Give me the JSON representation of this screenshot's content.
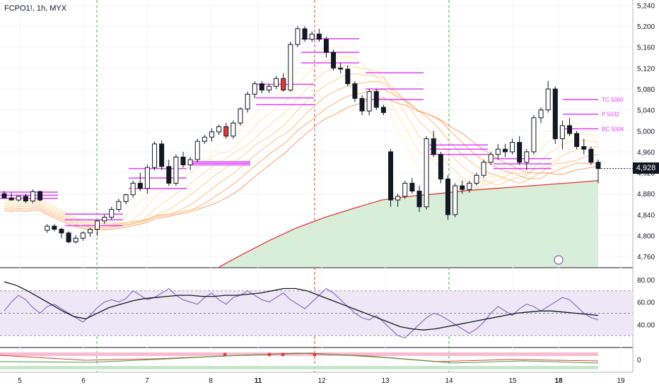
{
  "header": {
    "symbol": "FCPO1!, 1h, MYX"
  },
  "price_axis": {
    "ticks": [
      "5,240",
      "5,200",
      "5,160",
      "5,120",
      "5,080",
      "5,040",
      "5,000",
      "4,960",
      "4,920",
      "4,880",
      "4,840",
      "4,800",
      "4,760"
    ]
  },
  "last_price": "4,928",
  "osc_axis": {
    "ticks": [
      "80.00",
      "60.00",
      "40.00"
    ]
  },
  "osc2_axis": {
    "ticks": [
      "0"
    ]
  },
  "time_axis": {
    "ticks": [
      "5",
      "6",
      "7",
      "8",
      "11",
      "12",
      "13",
      "14",
      "15",
      "18",
      "19"
    ]
  },
  "level_labels": {
    "tc": "TC 5060",
    "p": "P 5032",
    "bc": "BC 5004"
  },
  "colors": {
    "up_candle": "#ffffff",
    "down_candle": "#131722",
    "pivot_lines": "#e040fb",
    "slow_ma": "#e53935",
    "fill_area": "#d8eed8",
    "osc_band": "#ede7f6",
    "osc_line": "#7e57c2"
  },
  "chart_data": {
    "type": "candlestick",
    "title": "FCPO1!, 1h, MYX",
    "ylim": [
      4740,
      5250
    ],
    "x_ticks": [
      "5",
      "6",
      "7",
      "8",
      "11",
      "12",
      "13",
      "14",
      "15",
      "18",
      "19"
    ],
    "last_price": 4928,
    "candles": [
      [
        4880,
        4885,
        4875,
        4872
      ],
      [
        4872,
        4882,
        4868,
        4868
      ],
      [
        4868,
        4876,
        4865,
        4875
      ],
      [
        4875,
        4880,
        4862,
        4866
      ],
      [
        4866,
        4888,
        4862,
        4884
      ],
      [
        4884,
        4886,
        4865,
        4868
      ],
      [
        4810,
        4822,
        4805,
        4818
      ],
      [
        4818,
        4822,
        4808,
        4812
      ],
      [
        4812,
        4815,
        4795,
        4805
      ],
      [
        4805,
        4808,
        4785,
        4788
      ],
      [
        4788,
        4800,
        4785,
        4795
      ],
      [
        4795,
        4808,
        4790,
        4805
      ],
      [
        4805,
        4815,
        4798,
        4812
      ],
      [
        4812,
        4830,
        4800,
        4828
      ],
      [
        4828,
        4840,
        4822,
        4835
      ],
      [
        4835,
        4855,
        4830,
        4850
      ],
      [
        4850,
        4870,
        4845,
        4865
      ],
      [
        4865,
        4880,
        4860,
        4878
      ],
      [
        4878,
        4905,
        4872,
        4900
      ],
      [
        4900,
        4920,
        4885,
        4890
      ],
      [
        4890,
        4935,
        4880,
        4930
      ],
      [
        4930,
        4980,
        4925,
        4975
      ],
      [
        4975,
        4982,
        4925,
        4932
      ],
      [
        4932,
        4945,
        4895,
        4900
      ],
      [
        4900,
        4955,
        4895,
        4950
      ],
      [
        4950,
        4960,
        4930,
        4935
      ],
      [
        4935,
        4950,
        4925,
        4945
      ],
      [
        4945,
        4985,
        4940,
        4980
      ],
      [
        4980,
        4992,
        4975,
        4988
      ],
      [
        4988,
        5005,
        4980,
        4998
      ],
      [
        4998,
        5012,
        4992,
        5008
      ],
      [
        5008,
        5015,
        4985,
        4990
      ],
      [
        4990,
        5020,
        4985,
        5015
      ],
      [
        5015,
        5045,
        5010,
        5042
      ],
      [
        5042,
        5075,
        5035,
        5070
      ],
      [
        5070,
        5095,
        5062,
        5090
      ],
      [
        5090,
        5095,
        5072,
        5078
      ],
      [
        5078,
        5090,
        5072,
        5085
      ],
      [
        5085,
        5105,
        5080,
        5100
      ],
      [
        5100,
        5110,
        5075,
        5078
      ],
      [
        5078,
        5170,
        5075,
        5165
      ],
      [
        5165,
        5200,
        5160,
        5195
      ],
      [
        5195,
        5200,
        5170,
        5175
      ],
      [
        5175,
        5190,
        5170,
        5185
      ],
      [
        5185,
        5195,
        5170,
        5175
      ],
      [
        5175,
        5180,
        5140,
        5150
      ],
      [
        5150,
        5155,
        5115,
        5120
      ],
      [
        5120,
        5130,
        5110,
        5118
      ],
      [
        5118,
        5125,
        5085,
        5090
      ],
      [
        5090,
        5095,
        5055,
        5062
      ],
      [
        5062,
        5068,
        5030,
        5038
      ],
      [
        5038,
        5080,
        5030,
        5075
      ],
      [
        5075,
        5080,
        5040,
        5045
      ],
      [
        5045,
        5050,
        5030,
        5035
      ],
      [
        4960,
        4965,
        4855,
        4868
      ],
      [
        4868,
        4880,
        4855,
        4875
      ],
      [
        4875,
        4905,
        4870,
        4900
      ],
      [
        4900,
        4910,
        4880,
        4885
      ],
      [
        4885,
        4895,
        4845,
        4855
      ],
      [
        4855,
        4990,
        4850,
        4985
      ],
      [
        4985,
        5000,
        4950,
        4955
      ],
      [
        4955,
        4960,
        4900,
        4908
      ],
      [
        4908,
        4915,
        4830,
        4840
      ],
      [
        4840,
        4900,
        4835,
        4895
      ],
      [
        4895,
        4905,
        4880,
        4888
      ],
      [
        4888,
        4905,
        4882,
        4900
      ],
      [
        4900,
        4920,
        4895,
        4915
      ],
      [
        4915,
        4945,
        4910,
        4940
      ],
      [
        4940,
        4960,
        4935,
        4955
      ],
      [
        4955,
        4975,
        4945,
        4965
      ],
      [
        4965,
        4975,
        4950,
        4960
      ],
      [
        4960,
        4985,
        4955,
        4978
      ],
      [
        4978,
        4990,
        4935,
        4940
      ],
      [
        4940,
        4965,
        4925,
        4960
      ],
      [
        4960,
        5030,
        4955,
        5025
      ],
      [
        5025,
        5045,
        5015,
        5040
      ],
      [
        5040,
        5095,
        5035,
        5080
      ],
      [
        5080,
        5085,
        4975,
        4985
      ],
      [
        4985,
        5020,
        4965,
        5010
      ],
      [
        5010,
        5025,
        4990,
        4995
      ],
      [
        4995,
        5000,
        4965,
        4970
      ],
      [
        4970,
        4985,
        4955,
        4965
      ],
      [
        4965,
        4970,
        4935,
        4940
      ],
      [
        4940,
        4945,
        4900,
        4928
      ]
    ],
    "pivot_levels": [
      {
        "top": 4883,
        "mid": 4877,
        "bottom": 4871
      },
      {
        "top": 4841,
        "mid": 4830,
        "bottom": 4819
      },
      {
        "top": 4928,
        "mid": 4910,
        "bottom": 4890
      },
      {
        "top": 4941,
        "mid": 4938,
        "bottom": 4935
      },
      {
        "top": 5089,
        "mid": 5063,
        "bottom": 5050
      },
      {
        "top": 5176,
        "mid": 5150,
        "bottom": 5130
      },
      {
        "top": 5111,
        "mid": 5080,
        "bottom": 5060
      },
      {
        "top": 4973,
        "mid": 4965,
        "bottom": 4955
      },
      {
        "top": 4947,
        "mid": 4937,
        "bottom": 4928
      },
      {
        "top": 5060,
        "mid": 5032,
        "bottom": 5004
      }
    ],
    "oscillator": {
      "ylim": [
        20,
        90
      ],
      "band": [
        30,
        70
      ],
      "fast": [
        52,
        60,
        66,
        62,
        55,
        50,
        56,
        58,
        54,
        50,
        46,
        42,
        48,
        55,
        60,
        62,
        60,
        63,
        70,
        66,
        62,
        64,
        68,
        72,
        66,
        62,
        60,
        58,
        64,
        68,
        62,
        58,
        64,
        66,
        70,
        66,
        62,
        60,
        64,
        68,
        62,
        58,
        54,
        60,
        66,
        72,
        68,
        62,
        56,
        50,
        46,
        44,
        48,
        42,
        36,
        30,
        28,
        34,
        40,
        46,
        50,
        48,
        44,
        40,
        36,
        32,
        36,
        42,
        50,
        56,
        52,
        48,
        54,
        58,
        56,
        52,
        56,
        60,
        64,
        62,
        56,
        50,
        46,
        44
      ],
      "slow": [
        78,
        75,
        70,
        64,
        58,
        52,
        47,
        45,
        50,
        55,
        58,
        61,
        63,
        64,
        65,
        66,
        66,
        65,
        65,
        66,
        66,
        67,
        68,
        70,
        72,
        72,
        70,
        66,
        62,
        58,
        54,
        50,
        46,
        42,
        38,
        36,
        35,
        36,
        38,
        40,
        42,
        44,
        46,
        48,
        50,
        51,
        52,
        52,
        51,
        50,
        49,
        48
      ]
    }
  }
}
